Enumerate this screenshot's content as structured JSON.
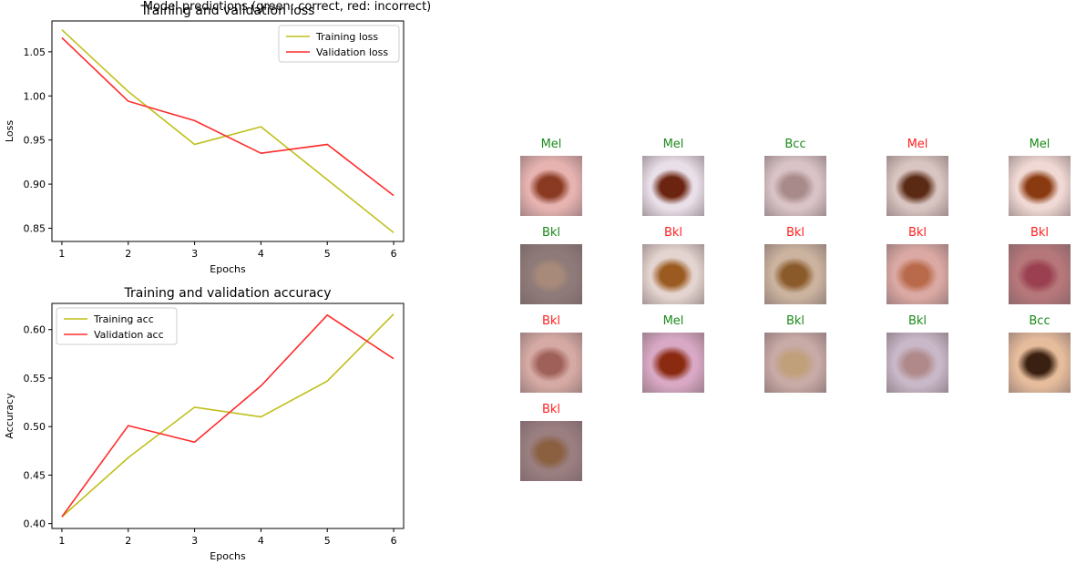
{
  "colors": {
    "train": "#bfbf1a",
    "validation": "#ff2b2b",
    "correct": "#1a8a1a",
    "incorrect": "#ff2020"
  },
  "chart_data": [
    {
      "type": "line",
      "title": "Training and validation loss",
      "xlabel": "Epochs",
      "ylabel": "Loss",
      "x": [
        1,
        2,
        3,
        4,
        5,
        6
      ],
      "xticks": [
        "1",
        "2",
        "3",
        "4",
        "5",
        "6"
      ],
      "yticks": [
        "0.85",
        "0.90",
        "0.95",
        "1.00",
        "1.05"
      ],
      "xlim": [
        0.85,
        6.15
      ],
      "ylim": [
        0.835,
        1.085
      ],
      "legend_position": "top-right",
      "series": [
        {
          "name": "Training loss",
          "color": "#bfbf1a",
          "values": [
            1.075,
            1.005,
            0.945,
            0.965,
            0.905,
            0.845
          ]
        },
        {
          "name": "Validation loss",
          "color": "#ff2b2b",
          "values": [
            1.066,
            0.994,
            0.972,
            0.935,
            0.945,
            0.887
          ]
        }
      ]
    },
    {
      "type": "line",
      "title": "Training and validation accuracy",
      "xlabel": "Epochs",
      "ylabel": "Accuracy",
      "x": [
        1,
        2,
        3,
        4,
        5,
        6
      ],
      "xticks": [
        "1",
        "2",
        "3",
        "4",
        "5",
        "6"
      ],
      "yticks": [
        "0.40",
        "0.45",
        "0.50",
        "0.55",
        "0.60"
      ],
      "xlim": [
        0.85,
        6.15
      ],
      "ylim": [
        0.395,
        0.627
      ],
      "legend_position": "top-left",
      "series": [
        {
          "name": "Training acc",
          "color": "#bfbf1a",
          "values": [
            0.407,
            0.468,
            0.52,
            0.51,
            0.547,
            0.616
          ]
        },
        {
          "name": "Validation acc",
          "color": "#ff2b2b",
          "values": [
            0.407,
            0.501,
            0.484,
            0.542,
            0.615,
            0.57
          ]
        }
      ]
    }
  ],
  "predictions": {
    "title": "Model predictions (green: correct, red: incorrect)",
    "items": [
      {
        "label": "Mel",
        "correct": true,
        "skin": "#e6b3b0",
        "lesion": "#8a3a22"
      },
      {
        "label": "Mel",
        "correct": true,
        "skin": "#e9dfe8",
        "lesion": "#6b2410"
      },
      {
        "label": "Bcc",
        "correct": true,
        "skin": "#d9c3c6",
        "lesion": "#a88a8a"
      },
      {
        "label": "Mel",
        "correct": false,
        "skin": "#d8c4c0",
        "lesion": "#5a2a14"
      },
      {
        "label": "Mel",
        "correct": true,
        "skin": "#f0d9d4",
        "lesion": "#8a3a10"
      },
      {
        "label": "Bkl",
        "correct": true,
        "skin": "#8e7a78",
        "lesion": "#a88a7a"
      },
      {
        "label": "Bkl",
        "correct": false,
        "skin": "#e4d4cf",
        "lesion": "#9a5a20"
      },
      {
        "label": "Bkl",
        "correct": false,
        "skin": "#cbb39f",
        "lesion": "#8a5a2a"
      },
      {
        "label": "Bkl",
        "correct": false,
        "skin": "#dba9a3",
        "lesion": "#b86a4a"
      },
      {
        "label": "Bkl",
        "correct": false,
        "skin": "#b6777a",
        "lesion": "#9a4050"
      },
      {
        "label": "Bkl",
        "correct": false,
        "skin": "#d6aaa4",
        "lesion": "#a0605a"
      },
      {
        "label": "Mel",
        "correct": true,
        "skin": "#d8a8c4",
        "lesion": "#8a2a10"
      },
      {
        "label": "Bkl",
        "correct": true,
        "skin": "#c8aaa6",
        "lesion": "#c0a07a"
      },
      {
        "label": "Bkl",
        "correct": true,
        "skin": "#c8b8c8",
        "lesion": "#b08a8a"
      },
      {
        "label": "Bcc",
        "correct": true,
        "skin": "#e6bd9c",
        "lesion": "#3a2010"
      },
      {
        "label": "Bkl",
        "correct": false,
        "skin": "#9a7e80",
        "lesion": "#8a6040"
      }
    ]
  }
}
